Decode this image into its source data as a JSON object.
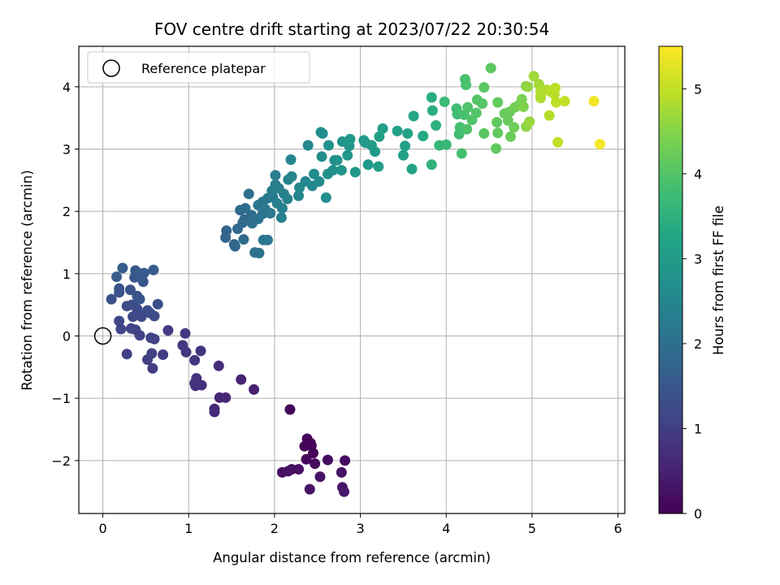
{
  "chart_data": {
    "type": "scatter",
    "title": "FOV centre drift starting at 2023/07/22 20:30:54",
    "xlabel": "Angular distance from reference (arcmin)",
    "ylabel": "Rotation from reference (arcmin)",
    "xlim": [
      -0.28,
      6.08
    ],
    "ylim": [
      -2.85,
      4.65
    ],
    "xticks": [
      0,
      1,
      2,
      3,
      4,
      5,
      6
    ],
    "yticks": [
      -2,
      -1,
      0,
      1,
      2,
      3,
      4
    ],
    "xtick_labels": [
      "0",
      "1",
      "2",
      "3",
      "4",
      "5",
      "6"
    ],
    "ytick_labels": [
      "−2",
      "−1",
      "0",
      "1",
      "2",
      "3",
      "4"
    ],
    "grid": true,
    "legend": {
      "placement": "top-left",
      "entries": [
        {
          "label": "Reference platepar",
          "marker": "open-circle"
        }
      ]
    },
    "reference_point": {
      "x": 0,
      "y": 0
    },
    "colorbar": {
      "label": "Hours from first FF file",
      "range": [
        0,
        5.5
      ],
      "ticks": [
        0,
        1,
        2,
        3,
        4,
        5
      ],
      "tick_labels": [
        "0",
        "1",
        "2",
        "3",
        "4",
        "5"
      ],
      "colormap": "viridis"
    },
    "points": [
      {
        "x": 2.38,
        "y": -1.65,
        "c": 0.05
      },
      {
        "x": 2.42,
        "y": -1.72,
        "c": 0.05
      },
      {
        "x": 2.35,
        "y": -1.77,
        "c": 0.06
      },
      {
        "x": 2.45,
        "y": -1.88,
        "c": 0.07
      },
      {
        "x": 2.43,
        "y": -1.76,
        "c": 0.08
      },
      {
        "x": 2.18,
        "y": -1.18,
        "c": 0.1
      },
      {
        "x": 2.37,
        "y": -1.98,
        "c": 0.12
      },
      {
        "x": 2.47,
        "y": -2.05,
        "c": 0.14
      },
      {
        "x": 2.62,
        "y": -1.99,
        "c": 0.16
      },
      {
        "x": 2.82,
        "y": -2.0,
        "c": 0.18
      },
      {
        "x": 2.2,
        "y": -2.14,
        "c": 0.2
      },
      {
        "x": 2.28,
        "y": -2.14,
        "c": 0.22
      },
      {
        "x": 2.09,
        "y": -2.19,
        "c": 0.24
      },
      {
        "x": 2.16,
        "y": -2.17,
        "c": 0.26
      },
      {
        "x": 2.53,
        "y": -2.26,
        "c": 0.28
      },
      {
        "x": 2.78,
        "y": -2.19,
        "c": 0.3
      },
      {
        "x": 2.41,
        "y": -2.46,
        "c": 0.32
      },
      {
        "x": 2.79,
        "y": -2.43,
        "c": 0.34
      },
      {
        "x": 2.81,
        "y": -2.5,
        "c": 0.36
      },
      {
        "x": 1.76,
        "y": -0.86,
        "c": 0.5
      },
      {
        "x": 1.61,
        "y": -0.7,
        "c": 0.55
      },
      {
        "x": 1.36,
        "y": -0.99,
        "c": 0.6
      },
      {
        "x": 1.43,
        "y": -0.99,
        "c": 0.62
      },
      {
        "x": 1.3,
        "y": -1.17,
        "c": 0.65
      },
      {
        "x": 1.3,
        "y": -1.22,
        "c": 0.66
      },
      {
        "x": 1.35,
        "y": -0.48,
        "c": 0.7
      },
      {
        "x": 1.07,
        "y": -0.76,
        "c": 0.75
      },
      {
        "x": 1.15,
        "y": -0.79,
        "c": 0.76
      },
      {
        "x": 1.08,
        "y": -0.8,
        "c": 0.78
      },
      {
        "x": 1.09,
        "y": -0.68,
        "c": 0.8
      },
      {
        "x": 1.14,
        "y": -0.24,
        "c": 0.85
      },
      {
        "x": 1.07,
        "y": -0.39,
        "c": 0.87
      },
      {
        "x": 0.97,
        "y": -0.26,
        "c": 0.88
      },
      {
        "x": 0.93,
        "y": -0.15,
        "c": 0.9
      },
      {
        "x": 0.96,
        "y": 0.04,
        "c": 0.92
      },
      {
        "x": 0.76,
        "y": 0.09,
        "c": 0.95
      },
      {
        "x": 0.7,
        "y": -0.3,
        "c": 0.97
      },
      {
        "x": 0.58,
        "y": -0.52,
        "c": 1.0
      },
      {
        "x": 0.52,
        "y": -0.38,
        "c": 1.02
      },
      {
        "x": 0.28,
        "y": -0.29,
        "c": 1.05
      },
      {
        "x": 0.57,
        "y": -0.28,
        "c": 1.06
      },
      {
        "x": 0.6,
        "y": -0.05,
        "c": 1.08
      },
      {
        "x": 0.56,
        "y": -0.03,
        "c": 1.1
      },
      {
        "x": 0.43,
        "y": 0.01,
        "c": 1.12
      },
      {
        "x": 0.38,
        "y": 0.1,
        "c": 1.13
      },
      {
        "x": 0.33,
        "y": 0.12,
        "c": 1.14
      },
      {
        "x": 0.21,
        "y": 0.11,
        "c": 1.15
      },
      {
        "x": 0.19,
        "y": 0.24,
        "c": 1.17
      },
      {
        "x": 0.35,
        "y": 0.31,
        "c": 1.18
      },
      {
        "x": 0.45,
        "y": 0.31,
        "c": 1.2
      },
      {
        "x": 0.6,
        "y": 0.32,
        "c": 1.22
      },
      {
        "x": 0.55,
        "y": 0.37,
        "c": 1.24
      },
      {
        "x": 0.4,
        "y": 0.43,
        "c": 1.25
      },
      {
        "x": 0.28,
        "y": 0.48,
        "c": 1.27
      },
      {
        "x": 0.34,
        "y": 0.5,
        "c": 1.28
      },
      {
        "x": 0.52,
        "y": 0.41,
        "c": 1.3
      },
      {
        "x": 0.64,
        "y": 0.51,
        "c": 1.32
      },
      {
        "x": 0.1,
        "y": 0.59,
        "c": 1.34
      },
      {
        "x": 0.19,
        "y": 0.7,
        "c": 1.36
      },
      {
        "x": 0.19,
        "y": 0.76,
        "c": 1.38
      },
      {
        "x": 0.32,
        "y": 0.74,
        "c": 1.4
      },
      {
        "x": 0.4,
        "y": 0.64,
        "c": 1.42
      },
      {
        "x": 0.43,
        "y": 0.59,
        "c": 1.44
      },
      {
        "x": 0.37,
        "y": 0.94,
        "c": 1.46
      },
      {
        "x": 0.47,
        "y": 0.87,
        "c": 1.48
      },
      {
        "x": 0.38,
        "y": 1.05,
        "c": 1.5
      },
      {
        "x": 0.43,
        "y": 1.0,
        "c": 1.52
      },
      {
        "x": 0.48,
        "y": 1.01,
        "c": 1.54
      },
      {
        "x": 0.59,
        "y": 1.06,
        "c": 1.56
      },
      {
        "x": 0.23,
        "y": 1.09,
        "c": 1.58
      },
      {
        "x": 0.16,
        "y": 0.95,
        "c": 1.6
      },
      {
        "x": 1.43,
        "y": 1.58,
        "c": 1.75
      },
      {
        "x": 1.44,
        "y": 1.69,
        "c": 1.78
      },
      {
        "x": 1.53,
        "y": 1.47,
        "c": 1.8
      },
      {
        "x": 1.54,
        "y": 1.44,
        "c": 1.82
      },
      {
        "x": 1.57,
        "y": 1.72,
        "c": 1.84
      },
      {
        "x": 1.63,
        "y": 1.82,
        "c": 1.86
      },
      {
        "x": 1.6,
        "y": 2.02,
        "c": 1.88
      },
      {
        "x": 1.65,
        "y": 1.87,
        "c": 1.9
      },
      {
        "x": 1.64,
        "y": 1.55,
        "c": 1.92
      },
      {
        "x": 1.73,
        "y": 1.94,
        "c": 1.94
      },
      {
        "x": 1.66,
        "y": 2.05,
        "c": 1.96
      },
      {
        "x": 1.7,
        "y": 2.28,
        "c": 1.98
      },
      {
        "x": 1.74,
        "y": 1.81,
        "c": 2.0
      },
      {
        "x": 1.77,
        "y": 1.34,
        "c": 2.02
      },
      {
        "x": 1.82,
        "y": 1.33,
        "c": 2.04
      },
      {
        "x": 1.81,
        "y": 1.88,
        "c": 2.06
      },
      {
        "x": 1.81,
        "y": 2.1,
        "c": 2.08
      },
      {
        "x": 1.86,
        "y": 2.15,
        "c": 2.1
      },
      {
        "x": 1.86,
        "y": 1.96,
        "c": 2.12
      },
      {
        "x": 1.87,
        "y": 1.54,
        "c": 2.14
      },
      {
        "x": 1.92,
        "y": 1.54,
        "c": 2.16
      },
      {
        "x": 1.89,
        "y": 2.04,
        "c": 2.18
      },
      {
        "x": 1.92,
        "y": 2.21,
        "c": 2.2
      },
      {
        "x": 1.95,
        "y": 1.97,
        "c": 2.22
      },
      {
        "x": 1.98,
        "y": 2.23,
        "c": 2.24
      },
      {
        "x": 1.97,
        "y": 2.33,
        "c": 2.26
      },
      {
        "x": 2.01,
        "y": 2.43,
        "c": 2.28
      },
      {
        "x": 2.01,
        "y": 2.58,
        "c": 2.3
      },
      {
        "x": 2.03,
        "y": 2.13,
        "c": 2.32
      },
      {
        "x": 2.05,
        "y": 2.37,
        "c": 2.34
      },
      {
        "x": 2.08,
        "y": 1.9,
        "c": 2.36
      },
      {
        "x": 2.09,
        "y": 2.05,
        "c": 2.38
      },
      {
        "x": 2.11,
        "y": 2.28,
        "c": 2.4
      },
      {
        "x": 2.15,
        "y": 2.2,
        "c": 2.42
      },
      {
        "x": 2.16,
        "y": 2.51,
        "c": 2.44
      },
      {
        "x": 2.2,
        "y": 2.56,
        "c": 2.46
      },
      {
        "x": 2.19,
        "y": 2.83,
        "c": 2.48
      },
      {
        "x": 2.28,
        "y": 2.25,
        "c": 2.5
      },
      {
        "x": 2.29,
        "y": 2.38,
        "c": 2.52
      },
      {
        "x": 2.36,
        "y": 2.48,
        "c": 2.54
      },
      {
        "x": 2.39,
        "y": 3.06,
        "c": 2.56
      },
      {
        "x": 2.44,
        "y": 2.41,
        "c": 2.58
      },
      {
        "x": 2.46,
        "y": 2.6,
        "c": 2.6
      },
      {
        "x": 2.52,
        "y": 2.48,
        "c": 2.62
      },
      {
        "x": 2.54,
        "y": 3.27,
        "c": 2.64
      },
      {
        "x": 2.55,
        "y": 2.88,
        "c": 2.66
      },
      {
        "x": 2.56,
        "y": 3.25,
        "c": 2.68
      },
      {
        "x": 2.6,
        "y": 2.22,
        "c": 2.7
      },
      {
        "x": 2.62,
        "y": 2.6,
        "c": 2.72
      },
      {
        "x": 2.63,
        "y": 3.06,
        "c": 2.74
      },
      {
        "x": 2.68,
        "y": 2.66,
        "c": 2.76
      },
      {
        "x": 2.7,
        "y": 2.82,
        "c": 2.78
      },
      {
        "x": 2.73,
        "y": 2.82,
        "c": 2.8
      },
      {
        "x": 2.78,
        "y": 2.66,
        "c": 2.82
      },
      {
        "x": 2.79,
        "y": 3.12,
        "c": 2.84
      },
      {
        "x": 2.85,
        "y": 2.9,
        "c": 2.86
      },
      {
        "x": 2.87,
        "y": 3.05,
        "c": 2.88
      },
      {
        "x": 2.88,
        "y": 3.16,
        "c": 2.9
      },
      {
        "x": 2.94,
        "y": 2.63,
        "c": 2.92
      },
      {
        "x": 3.04,
        "y": 3.14,
        "c": 2.94
      },
      {
        "x": 3.06,
        "y": 3.1,
        "c": 2.96
      },
      {
        "x": 3.09,
        "y": 2.75,
        "c": 2.98
      },
      {
        "x": 3.13,
        "y": 3.06,
        "c": 3.0
      },
      {
        "x": 3.17,
        "y": 2.96,
        "c": 3.02
      },
      {
        "x": 3.21,
        "y": 2.72,
        "c": 3.04
      },
      {
        "x": 3.22,
        "y": 3.2,
        "c": 3.06
      },
      {
        "x": 3.26,
        "y": 3.33,
        "c": 3.08
      },
      {
        "x": 3.43,
        "y": 3.29,
        "c": 3.1
      },
      {
        "x": 3.5,
        "y": 2.9,
        "c": 3.12
      },
      {
        "x": 3.52,
        "y": 3.05,
        "c": 3.14
      },
      {
        "x": 3.55,
        "y": 3.25,
        "c": 3.16
      },
      {
        "x": 3.6,
        "y": 2.68,
        "c": 3.2
      },
      {
        "x": 3.62,
        "y": 3.53,
        "c": 3.25
      },
      {
        "x": 3.73,
        "y": 3.21,
        "c": 3.3
      },
      {
        "x": 3.83,
        "y": 3.83,
        "c": 3.4
      },
      {
        "x": 3.84,
        "y": 3.62,
        "c": 3.45
      },
      {
        "x": 3.88,
        "y": 3.38,
        "c": 3.5
      },
      {
        "x": 3.83,
        "y": 2.75,
        "c": 3.55
      },
      {
        "x": 3.92,
        "y": 3.06,
        "c": 3.6
      },
      {
        "x": 4.0,
        "y": 3.07,
        "c": 3.65
      },
      {
        "x": 3.98,
        "y": 3.76,
        "c": 3.7
      },
      {
        "x": 4.13,
        "y": 3.56,
        "c": 3.75
      },
      {
        "x": 4.12,
        "y": 3.65,
        "c": 3.8
      },
      {
        "x": 4.15,
        "y": 3.24,
        "c": 3.82
      },
      {
        "x": 4.16,
        "y": 3.35,
        "c": 3.84
      },
      {
        "x": 4.18,
        "y": 2.93,
        "c": 3.86
      },
      {
        "x": 4.21,
        "y": 3.55,
        "c": 3.88
      },
      {
        "x": 4.22,
        "y": 4.12,
        "c": 3.9
      },
      {
        "x": 4.23,
        "y": 4.03,
        "c": 3.92
      },
      {
        "x": 4.25,
        "y": 3.67,
        "c": 3.94
      },
      {
        "x": 4.24,
        "y": 3.32,
        "c": 3.96
      },
      {
        "x": 4.3,
        "y": 3.47,
        "c": 3.98
      },
      {
        "x": 4.35,
        "y": 3.58,
        "c": 4.0
      },
      {
        "x": 4.36,
        "y": 3.79,
        "c": 4.02
      },
      {
        "x": 4.42,
        "y": 3.73,
        "c": 4.04
      },
      {
        "x": 4.44,
        "y": 3.25,
        "c": 4.06
      },
      {
        "x": 4.44,
        "y": 3.99,
        "c": 4.08
      },
      {
        "x": 4.52,
        "y": 4.3,
        "c": 4.1
      },
      {
        "x": 4.58,
        "y": 3.01,
        "c": 4.12
      },
      {
        "x": 4.59,
        "y": 3.43,
        "c": 4.14
      },
      {
        "x": 4.6,
        "y": 3.26,
        "c": 4.16
      },
      {
        "x": 4.6,
        "y": 3.75,
        "c": 4.18
      },
      {
        "x": 4.68,
        "y": 3.57,
        "c": 4.2
      },
      {
        "x": 4.72,
        "y": 3.46,
        "c": 4.22
      },
      {
        "x": 4.74,
        "y": 3.6,
        "c": 4.24
      },
      {
        "x": 4.75,
        "y": 3.2,
        "c": 4.26
      },
      {
        "x": 4.79,
        "y": 3.35,
        "c": 4.28
      },
      {
        "x": 4.8,
        "y": 3.67,
        "c": 4.3
      },
      {
        "x": 4.84,
        "y": 3.7,
        "c": 4.35
      },
      {
        "x": 4.88,
        "y": 3.8,
        "c": 4.4
      },
      {
        "x": 4.9,
        "y": 3.68,
        "c": 4.45
      },
      {
        "x": 4.93,
        "y": 4.01,
        "c": 4.5
      },
      {
        "x": 4.93,
        "y": 3.36,
        "c": 4.55
      },
      {
        "x": 4.95,
        "y": 4.0,
        "c": 4.6
      },
      {
        "x": 4.97,
        "y": 3.44,
        "c": 4.65
      },
      {
        "x": 5.02,
        "y": 4.17,
        "c": 4.7
      },
      {
        "x": 5.08,
        "y": 4.04,
        "c": 4.75
      },
      {
        "x": 5.1,
        "y": 3.85,
        "c": 4.8
      },
      {
        "x": 5.1,
        "y": 3.93,
        "c": 4.82
      },
      {
        "x": 5.1,
        "y": 3.82,
        "c": 4.84
      },
      {
        "x": 5.17,
        "y": 3.95,
        "c": 4.86
      },
      {
        "x": 5.2,
        "y": 3.54,
        "c": 4.88
      },
      {
        "x": 5.22,
        "y": 3.92,
        "c": 4.9
      },
      {
        "x": 5.26,
        "y": 3.88,
        "c": 4.92
      },
      {
        "x": 5.27,
        "y": 3.98,
        "c": 4.94
      },
      {
        "x": 5.28,
        "y": 3.75,
        "c": 4.96
      },
      {
        "x": 5.3,
        "y": 3.11,
        "c": 4.98
      },
      {
        "x": 5.38,
        "y": 3.77,
        "c": 5.0
      },
      {
        "x": 5.72,
        "y": 3.77,
        "c": 5.4
      },
      {
        "x": 5.79,
        "y": 3.08,
        "c": 5.45
      }
    ]
  }
}
